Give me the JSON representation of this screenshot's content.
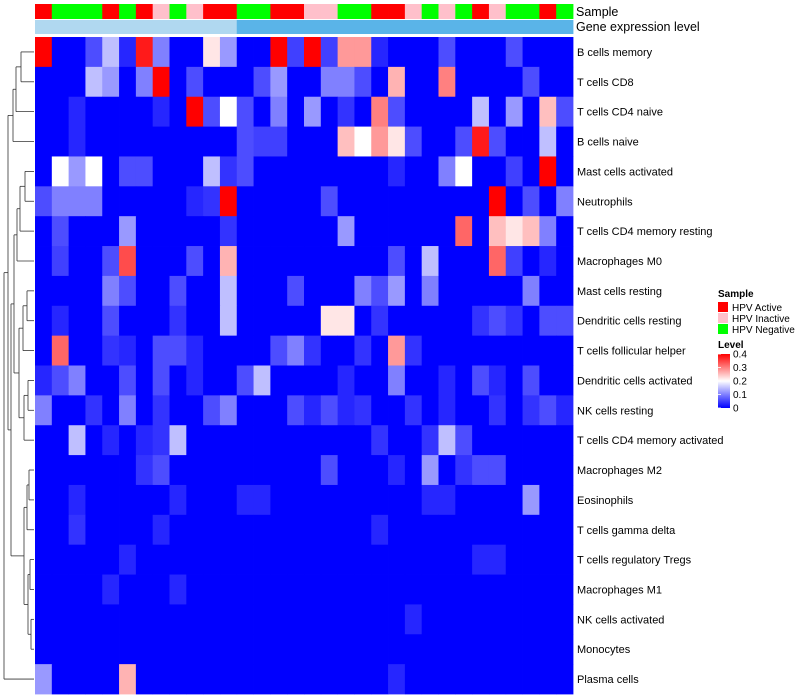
{
  "chart_data": {
    "type": "heatmap",
    "annotation_headers": [
      "Sample",
      "Gene expression level"
    ],
    "sample_annotation": [
      "Active",
      "Negative",
      "Negative",
      "Negative",
      "Active",
      "Negative",
      "Active",
      "Inactive",
      "Negative",
      "Inactive",
      "Active",
      "Active",
      "Negative",
      "Negative",
      "Active",
      "Active",
      "Inactive",
      "Inactive",
      "Negative",
      "Negative",
      "Active",
      "Active",
      "Inactive",
      "Negative",
      "Inactive",
      "Negative",
      "Active",
      "Inactive",
      "Negative",
      "Negative",
      "Active",
      "Negative"
    ],
    "sample_colors": {
      "Active": "#ff0000",
      "Inactive": "#ffc0cb",
      "Negative": "#00ff00"
    },
    "expression_colors": {
      "low": "#b0d8f0",
      "high": "#5ab4e8"
    },
    "expression_split": 12,
    "rows": [
      "B cells memory",
      "T cells CD8",
      "T cells CD4 naive",
      "B cells naive",
      "Mast cells activated",
      "Neutrophils",
      "T cells CD4 memory resting",
      "Macrophages M0",
      "Mast cells resting",
      "Dendritic cells resting",
      "T cells follicular helper",
      "Dendritic cells activated",
      "NK cells resting",
      "T cells CD4 memory activated",
      "Macrophages M2",
      "Eosinophils",
      "T cells gamma delta",
      "T cells regulatory  Tregs",
      "Macrophages M1",
      "NK cells activated",
      "Monocytes",
      "Plasma cells"
    ],
    "values": [
      [
        0.4,
        0.0,
        0.0,
        0.06,
        0.15,
        0.03,
        0.38,
        0.1,
        0.0,
        0.0,
        0.22,
        0.12,
        0.0,
        0.0,
        0.4,
        0.05,
        0.4,
        0.05,
        0.28,
        0.28,
        0.03,
        0.0,
        0.0,
        0.0,
        0.06,
        0.0,
        0.0,
        0.0,
        0.06,
        0.0,
        0.0,
        0.0
      ],
      [
        0.0,
        0.0,
        0.0,
        0.15,
        0.12,
        0.0,
        0.1,
        0.4,
        0.0,
        0.06,
        0.0,
        0.0,
        0.0,
        0.06,
        0.12,
        0.0,
        0.0,
        0.1,
        0.1,
        0.06,
        0.0,
        0.26,
        0.0,
        0.0,
        0.3,
        0.0,
        0.0,
        0.0,
        0.0,
        0.06,
        0.0,
        0.0
      ],
      [
        0.0,
        0.0,
        0.03,
        0.0,
        0.0,
        0.0,
        0.0,
        0.03,
        0.0,
        0.4,
        0.06,
        0.2,
        0.06,
        0.0,
        0.1,
        0.0,
        0.12,
        0.0,
        0.04,
        0.0,
        0.3,
        0.06,
        0.0,
        0.0,
        0.0,
        0.0,
        0.15,
        0.0,
        0.12,
        0.0,
        0.25,
        0.06
      ],
      [
        0.0,
        0.0,
        0.03,
        0.0,
        0.0,
        0.0,
        0.0,
        0.0,
        0.0,
        0.0,
        0.0,
        0.0,
        0.06,
        0.05,
        0.05,
        0.0,
        0.0,
        0.0,
        0.25,
        0.2,
        0.28,
        0.22,
        0.06,
        0.0,
        0.0,
        0.06,
        0.38,
        0.06,
        0.0,
        0.0,
        0.15,
        0.0
      ],
      [
        0.0,
        0.2,
        0.12,
        0.2,
        0.0,
        0.06,
        0.06,
        0.0,
        0.0,
        0.0,
        0.15,
        0.04,
        0.06,
        0.0,
        0.0,
        0.0,
        0.0,
        0.0,
        0.0,
        0.0,
        0.0,
        0.03,
        0.0,
        0.0,
        0.1,
        0.2,
        0.0,
        0.0,
        0.05,
        0.0,
        0.4,
        0.0
      ],
      [
        0.06,
        0.1,
        0.1,
        0.1,
        0.0,
        0.0,
        0.0,
        0.0,
        0.0,
        0.03,
        0.04,
        0.4,
        0.0,
        0.0,
        0.0,
        0.0,
        0.0,
        0.06,
        0.0,
        0.0,
        0.0,
        0.0,
        0.0,
        0.0,
        0.0,
        0.0,
        0.0,
        0.4,
        0.0,
        0.06,
        0.0,
        0.1
      ],
      [
        0.0,
        0.06,
        0.0,
        0.0,
        0.0,
        0.12,
        0.0,
        0.0,
        0.0,
        0.0,
        0.0,
        0.04,
        0.0,
        0.0,
        0.0,
        0.0,
        0.0,
        0.0,
        0.12,
        0.0,
        0.0,
        0.0,
        0.0,
        0.0,
        0.0,
        0.32,
        0.0,
        0.25,
        0.22,
        0.25,
        0.1,
        0.0
      ],
      [
        0.0,
        0.05,
        0.0,
        0.0,
        0.06,
        0.34,
        0.0,
        0.0,
        0.0,
        0.06,
        0.0,
        0.26,
        0.0,
        0.0,
        0.0,
        0.0,
        0.0,
        0.0,
        0.0,
        0.0,
        0.0,
        0.06,
        0.0,
        0.15,
        0.0,
        0.0,
        0.0,
        0.32,
        0.05,
        0.0,
        0.03,
        0.0
      ],
      [
        0.0,
        0.0,
        0.0,
        0.0,
        0.1,
        0.06,
        0.0,
        0.0,
        0.06,
        0.0,
        0.0,
        0.15,
        0.0,
        0.0,
        0.0,
        0.06,
        0.0,
        0.0,
        0.0,
        0.1,
        0.06,
        0.12,
        0.0,
        0.1,
        0.0,
        0.0,
        0.0,
        0.0,
        0.0,
        0.1,
        0.0,
        0.0
      ],
      [
        0.0,
        0.03,
        0.0,
        0.0,
        0.06,
        0.0,
        0.0,
        0.0,
        0.04,
        0.0,
        0.0,
        0.15,
        0.0,
        0.0,
        0.0,
        0.0,
        0.0,
        0.22,
        0.22,
        0.0,
        0.04,
        0.0,
        0.0,
        0.0,
        0.0,
        0.0,
        0.04,
        0.06,
        0.04,
        0.0,
        0.06,
        0.06
      ],
      [
        0.0,
        0.32,
        0.0,
        0.0,
        0.04,
        0.03,
        0.0,
        0.06,
        0.06,
        0.03,
        0.0,
        0.0,
        0.0,
        0.0,
        0.06,
        0.1,
        0.04,
        0.0,
        0.0,
        0.04,
        0.0,
        0.28,
        0.04,
        0.0,
        0.0,
        0.0,
        0.0,
        0.0,
        0.0,
        0.0,
        0.0,
        0.0
      ],
      [
        0.03,
        0.06,
        0.1,
        0.0,
        0.0,
        0.06,
        0.0,
        0.06,
        0.0,
        0.03,
        0.0,
        0.0,
        0.06,
        0.15,
        0.0,
        0.0,
        0.0,
        0.0,
        0.03,
        0.0,
        0.0,
        0.1,
        0.0,
        0.0,
        0.03,
        0.0,
        0.06,
        0.03,
        0.0,
        0.06,
        0.0,
        0.0
      ],
      [
        0.1,
        0.0,
        0.0,
        0.04,
        0.0,
        0.1,
        0.0,
        0.04,
        0.0,
        0.0,
        0.06,
        0.1,
        0.0,
        0.0,
        0.0,
        0.06,
        0.03,
        0.06,
        0.03,
        0.04,
        0.0,
        0.0,
        0.04,
        0.0,
        0.03,
        0.0,
        0.0,
        0.04,
        0.0,
        0.04,
        0.06,
        0.03
      ],
      [
        0.0,
        0.0,
        0.15,
        0.0,
        0.03,
        0.0,
        0.03,
        0.04,
        0.15,
        0.0,
        0.0,
        0.0,
        0.0,
        0.0,
        0.0,
        0.0,
        0.0,
        0.0,
        0.0,
        0.0,
        0.04,
        0.0,
        0.0,
        0.04,
        0.15,
        0.06,
        0.0,
        0.0,
        0.0,
        0.0,
        0.0,
        0.0
      ],
      [
        0.0,
        0.0,
        0.0,
        0.0,
        0.0,
        0.0,
        0.04,
        0.06,
        0.0,
        0.0,
        0.0,
        0.0,
        0.0,
        0.0,
        0.0,
        0.0,
        0.0,
        0.06,
        0.0,
        0.0,
        0.0,
        0.03,
        0.0,
        0.12,
        0.0,
        0.04,
        0.06,
        0.06,
        0.0,
        0.0,
        0.0,
        0.0
      ],
      [
        0.0,
        0.0,
        0.03,
        0.0,
        0.0,
        0.0,
        0.0,
        0.0,
        0.03,
        0.0,
        0.0,
        0.0,
        0.03,
        0.03,
        0.0,
        0.0,
        0.0,
        0.0,
        0.0,
        0.0,
        0.0,
        0.0,
        0.0,
        0.03,
        0.03,
        0.0,
        0.0,
        0.0,
        0.0,
        0.12,
        0.0,
        0.0
      ],
      [
        0.0,
        0.0,
        0.04,
        0.0,
        0.0,
        0.0,
        0.0,
        0.03,
        0.0,
        0.0,
        0.0,
        0.0,
        0.0,
        0.0,
        0.0,
        0.0,
        0.0,
        0.0,
        0.0,
        0.0,
        0.03,
        0.0,
        0.0,
        0.0,
        0.0,
        0.0,
        0.0,
        0.0,
        0.0,
        0.0,
        0.0,
        0.0
      ],
      [
        0.0,
        0.0,
        0.0,
        0.0,
        0.0,
        0.03,
        0.0,
        0.0,
        0.0,
        0.0,
        0.0,
        0.0,
        0.0,
        0.0,
        0.0,
        0.0,
        0.0,
        0.0,
        0.0,
        0.0,
        0.0,
        0.0,
        0.0,
        0.0,
        0.0,
        0.0,
        0.03,
        0.03,
        0.0,
        0.0,
        0.0,
        0.0
      ],
      [
        0.0,
        0.0,
        0.0,
        0.0,
        0.03,
        0.0,
        0.0,
        0.0,
        0.03,
        0.0,
        0.0,
        0.0,
        0.0,
        0.0,
        0.0,
        0.0,
        0.0,
        0.0,
        0.0,
        0.0,
        0.0,
        0.0,
        0.0,
        0.0,
        0.0,
        0.0,
        0.0,
        0.0,
        0.0,
        0.0,
        0.0,
        0.0
      ],
      [
        0.0,
        0.0,
        0.0,
        0.0,
        0.0,
        0.0,
        0.0,
        0.0,
        0.0,
        0.0,
        0.0,
        0.0,
        0.0,
        0.0,
        0.0,
        0.0,
        0.0,
        0.0,
        0.0,
        0.0,
        0.0,
        0.0,
        0.03,
        0.0,
        0.0,
        0.0,
        0.0,
        0.0,
        0.0,
        0.0,
        0.0,
        0.0
      ],
      [
        0.0,
        0.0,
        0.0,
        0.0,
        0.0,
        0.0,
        0.0,
        0.0,
        0.0,
        0.0,
        0.0,
        0.0,
        0.0,
        0.0,
        0.0,
        0.0,
        0.0,
        0.0,
        0.0,
        0.0,
        0.0,
        0.0,
        0.0,
        0.0,
        0.0,
        0.0,
        0.0,
        0.0,
        0.0,
        0.0,
        0.0,
        0.0
      ],
      [
        0.12,
        0.0,
        0.0,
        0.0,
        0.0,
        0.26,
        0.0,
        0.0,
        0.0,
        0.0,
        0.0,
        0.0,
        0.0,
        0.0,
        0.0,
        0.0,
        0.0,
        0.0,
        0.0,
        0.0,
        0.0,
        0.03,
        0.0,
        0.0,
        0.0,
        0.0,
        0.0,
        0.0,
        0.0,
        0.0,
        0.0,
        0.0
      ]
    ],
    "color_scale": {
      "min": 0,
      "mid": 0.2,
      "max": 0.4,
      "low": "#0000ff",
      "midcolor": "#ffffff",
      "high": "#ff0000"
    },
    "legend": {
      "sample_title": "Sample",
      "sample_items": [
        {
          "key": "Active",
          "label": "HPV Active",
          "color": "#ff0000"
        },
        {
          "key": "Inactive",
          "label": "HPV Inactive",
          "color": "#ffc0cb"
        },
        {
          "key": "Negative",
          "label": "HPV Negative",
          "color": "#00ff00"
        }
      ],
      "level_title": "Level",
      "level_ticks": [
        "0.4",
        "0.3",
        "0.2",
        "0.1",
        "0"
      ],
      "placement": "right"
    }
  }
}
